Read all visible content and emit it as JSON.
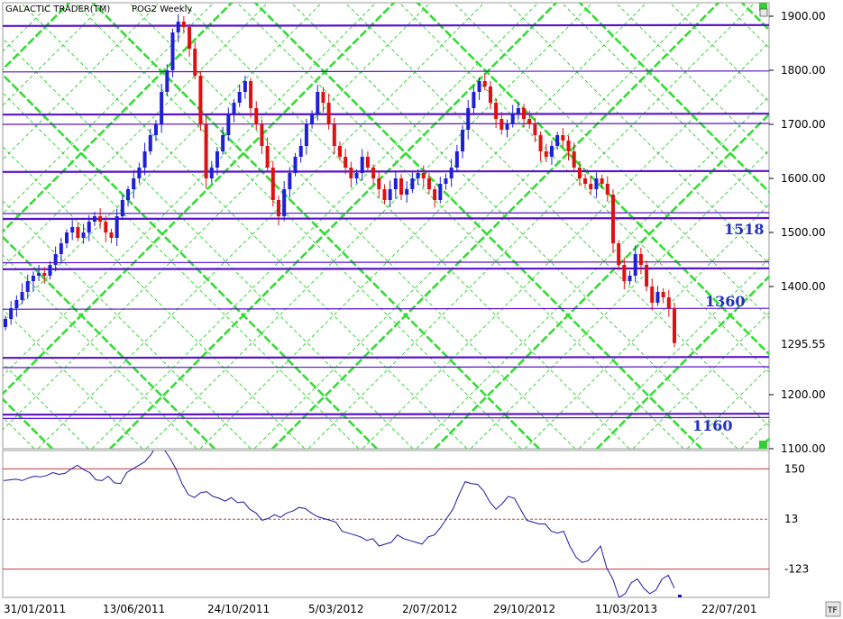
{
  "header": {
    "title": "GALACTIC TRADER(TM)",
    "symbol": "POG2 Weekly"
  },
  "chart_data": [
    {
      "type": "candlestick",
      "title": "GALACTIC TRADER(TM)   POG2 Weekly",
      "ylim": [
        1100,
        1920
      ],
      "yticks": [
        1900,
        1800,
        1700,
        1600,
        1500,
        1400,
        1200,
        1100
      ],
      "ytick_labels": [
        "1900.00",
        "1800.00",
        "1700.00",
        "1600.00",
        "1500.00",
        "1400.00",
        "1200.00",
        "1100.00"
      ],
      "last_price_label": "1295.55",
      "last_price": 1295.55,
      "grid": false,
      "horizontal_levels": [
        1882,
        1797,
        1718,
        1700,
        1612,
        1535,
        1525,
        1444,
        1432,
        1358,
        1268,
        1250,
        1163,
        1156
      ],
      "annotations": [
        {
          "text": "1518",
          "value": 1518
        },
        {
          "text": "1360",
          "value": 1360
        },
        {
          "text": "1160",
          "value": 1160
        }
      ],
      "closes": [
        1340,
        1360,
        1375,
        1390,
        1410,
        1420,
        1425,
        1420,
        1440,
        1460,
        1480,
        1500,
        1510,
        1490,
        1500,
        1520,
        1530,
        1520,
        1500,
        1490,
        1530,
        1560,
        1580,
        1600,
        1620,
        1650,
        1680,
        1700,
        1760,
        1800,
        1870,
        1890,
        1880,
        1840,
        1790,
        1700,
        1600,
        1620,
        1650,
        1680,
        1720,
        1740,
        1760,
        1780,
        1730,
        1700,
        1660,
        1620,
        1560,
        1530,
        1580,
        1610,
        1640,
        1660,
        1700,
        1720,
        1760,
        1740,
        1700,
        1660,
        1640,
        1620,
        1600,
        1610,
        1640,
        1620,
        1600,
        1580,
        1560,
        1580,
        1600,
        1570,
        1580,
        1600,
        1610,
        1600,
        1580,
        1560,
        1590,
        1600,
        1620,
        1650,
        1690,
        1730,
        1760,
        1780,
        1770,
        1740,
        1710,
        1690,
        1700,
        1720,
        1730,
        1710,
        1700,
        1680,
        1650,
        1640,
        1660,
        1680,
        1670,
        1650,
        1620,
        1600,
        1590,
        1580,
        1600,
        1590,
        1570,
        1480,
        1440,
        1410,
        1420,
        1460,
        1440,
        1400,
        1370,
        1390,
        1380,
        1360,
        1295.55
      ],
      "indicator": {
        "ylim": [
          -200,
          200
        ],
        "levels": [
          150,
          13,
          -123
        ],
        "level_labels": [
          "150",
          "13",
          "-123"
        ],
        "values": [
          118,
          120,
          122,
          118,
          125,
          130,
          128,
          132,
          140,
          135,
          138,
          150,
          160,
          148,
          140,
          120,
          118,
          130,
          112,
          110,
          140,
          150,
          160,
          170,
          190,
          220,
          205,
          180,
          150,
          110,
          80,
          72,
          85,
          88,
          75,
          70,
          62,
          72,
          58,
          60,
          40,
          30,
          10,
          15,
          25,
          18,
          30,
          35,
          45,
          42,
          30,
          20,
          15,
          10,
          5,
          -20,
          -25,
          -30,
          -35,
          -45,
          -40,
          -60,
          -55,
          -50,
          -30,
          -40,
          -45,
          -50,
          -55,
          -35,
          -30,
          -10,
          15,
          40,
          80,
          115,
          110,
          108,
          90,
          60,
          40,
          55,
          75,
          70,
          40,
          10,
          5,
          0,
          0,
          -20,
          -25,
          -20,
          -60,
          -90,
          -105,
          -100,
          -80,
          -60,
          -120,
          -150,
          -200,
          -190,
          -160,
          -150,
          -175,
          -190,
          -180,
          -150,
          -140,
          -175
        ]
      },
      "x_labels": [
        "31/01/2011",
        "13/06/2011",
        "24/10/2011",
        "5/03/2012",
        "2/07/2012",
        "29/10/2012",
        "11/03/2013",
        "22/07/201"
      ],
      "tf_label": "TF",
      "colors": {
        "up": "#1f1fd8",
        "down": "#e01010",
        "levels": "#5a12c9",
        "diagonal_major": "#33dd33",
        "diagonal_minor": "#2ecc2e",
        "indicator": "#1a1aa0",
        "indicator_levels": "#c83a3a",
        "annotation": "#1f2fbf"
      }
    }
  ]
}
